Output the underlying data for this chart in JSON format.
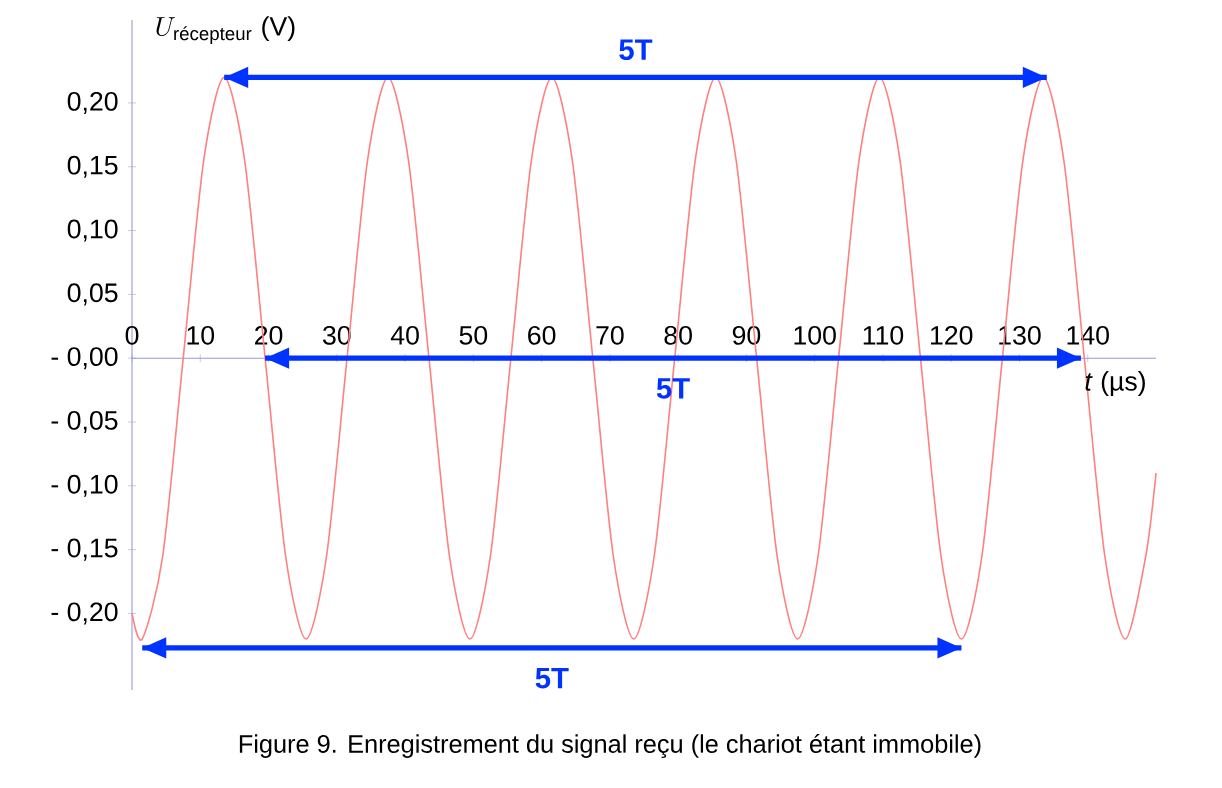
{
  "chart_data": {
    "type": "line",
    "title": "Figure 9. Enregistrement du signal reçu (le chariot étant immobile)",
    "xlabel": "*t* (µs)",
    "ylabel": "U_{\\text{récepteur}}\\ \\text{(V)}",
    "xlim": [
      0,
      150
    ],
    "ylim": [
      -0.26,
      0.265
    ],
    "xticks": [
      0,
      10,
      20,
      30,
      40,
      50,
      60,
      70,
      80,
      90,
      100,
      110,
      120,
      130,
      140
    ],
    "yticks": [
      {
        "value": -0.2,
        "label": "- 0,20"
      },
      {
        "value": -0.15,
        "label": "- 0,15"
      },
      {
        "value": -0.1,
        "label": "- 0,10"
      },
      {
        "value": -0.05,
        "label": "- 0,05"
      },
      {
        "value": 0,
        "label": "- 0,00"
      },
      {
        "value": 0.05,
        "label": "0,05"
      },
      {
        "value": 0.1,
        "label": "0,10"
      },
      {
        "value": 0.15,
        "label": "0,15"
      },
      {
        "value": 0.2,
        "label": "0,20"
      }
    ],
    "grid": false,
    "marker": "none",
    "line_style": "solid",
    "series": [
      {
        "color": "#ff8080",
        "x": [
          0,
          1.5,
          4.5,
          7.5,
          10.5,
          13.5,
          16.5,
          19.5,
          22.5,
          25.5,
          28.5,
          31.5,
          34.5,
          37.5,
          40.5,
          43.5,
          46.5,
          49.5,
          52.5,
          55.5,
          58.5,
          61.5,
          64.5,
          67.5,
          70.5,
          73.5,
          76.5,
          79.5,
          82.5,
          85.5,
          88.5,
          91.5,
          94.5,
          97.5,
          100.5,
          103.5,
          106.5,
          109.5,
          112.5,
          115.5,
          118.5,
          121.5,
          124.5,
          127.5,
          130.5,
          133.5,
          136.5,
          139.5,
          142.5,
          145.5,
          148.5,
          150
        ],
        "values": [
          -0.2,
          -0.22,
          -0.155,
          0,
          0.155,
          0.22,
          0.155,
          0,
          -0.155,
          -0.22,
          -0.155,
          0,
          0.155,
          0.22,
          0.155,
          0,
          -0.155,
          -0.22,
          -0.155,
          0,
          0.155,
          0.22,
          0.155,
          0,
          -0.155,
          -0.22,
          -0.155,
          0,
          0.155,
          0.22,
          0.155,
          0,
          -0.155,
          -0.22,
          -0.155,
          0,
          0.155,
          0.22,
          0.155,
          0,
          -0.155,
          -0.22,
          -0.155,
          0,
          0.155,
          0.22,
          0.155,
          0,
          -0.155,
          -0.22,
          -0.155,
          -0.09
        ]
      },
      {
        "type": "line",
        "color": "#0033ff",
        "x": [
          13.5,
          134
        ],
        "values": [
          0.22,
          0.22
        ]
      },
      {
        "type": "line",
        "color": "#0033ff",
        "x": [
          19.5,
          139
        ],
        "values": [
          0,
          0
        ]
      },
      {
        "type": "line",
        "color": "#0033ff",
        "x": [
          1.5,
          121.5
        ],
        "values": [
          -0.227,
          -0.227
        ]
      }
    ],
    "annotations": [
      "5T",
      "5T",
      "5T"
    ]
  }
}
